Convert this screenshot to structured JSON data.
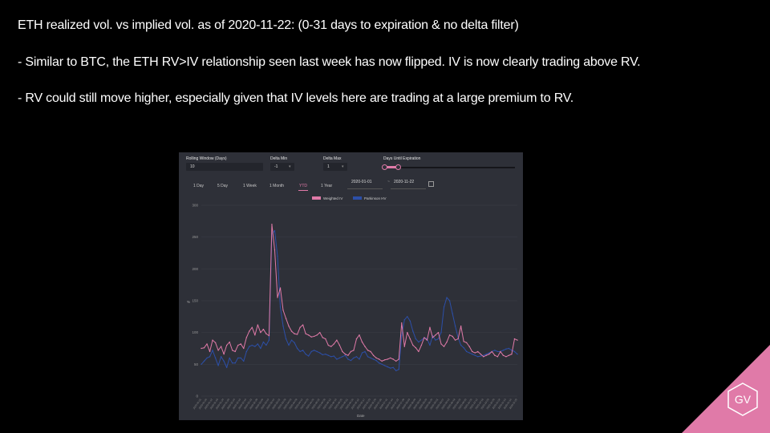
{
  "slide": {
    "line1": "ETH realized vol. vs implied vol. as of 2020-11-22: (0-31 days to expiration & no delta filter)",
    "line2": "- Similar to BTC, the ETH RV>IV relationship seen last week has now flipped.  IV is now clearly trading above RV.",
    "line3": "- RV could still move higher, especially given that IV levels here are trading at a large premium to RV."
  },
  "controls": {
    "rolling_window_label": "Rolling Window (Days)",
    "rolling_window_value": "10",
    "delta_min_label": "Delta Min",
    "delta_min_value": "-1",
    "delta_max_label": "Delta Max",
    "delta_max_value": "1",
    "days_label": "Days Until Expiration"
  },
  "ranges": {
    "d1": "1 Day",
    "d5": "5 Day",
    "w1": "1 Week",
    "m1": "1 Month",
    "ytd": "YTD",
    "y1": "1 Year",
    "active": "YTD"
  },
  "dates": {
    "start": "2020-01-01",
    "sep": "~",
    "end": "2020-11-22"
  },
  "legend": {
    "series1": "Weighted IV",
    "series2": "Parkinson HV"
  },
  "colors": {
    "pink": "#e07aa8",
    "blue": "#2c4fa8",
    "accent_triangle": "#e07aa8"
  },
  "logo": "GV",
  "chart_data": {
    "type": "line",
    "ylim": [
      0,
      300
    ],
    "y_ticks": [
      0,
      50,
      100,
      150,
      200,
      250,
      300
    ],
    "ylabel": "%",
    "xlabel": "Date",
    "x_start": "2020-01-01",
    "x_end": "2020-11-22",
    "series": [
      {
        "name": "Weighted IV",
        "color": "#e07aa8",
        "values": [
          75,
          76,
          82,
          70,
          88,
          84,
          72,
          78,
          66,
          80,
          85,
          72,
          70,
          80,
          82,
          75,
          92,
          102,
          108,
          96,
          112,
          100,
          105,
          98,
          95,
          270,
          230,
          155,
          170,
          135,
          122,
          110,
          102,
          98,
          97,
          108,
          112,
          98,
          96,
          93,
          94,
          96,
          100,
          92,
          90,
          80,
          78,
          82,
          88,
          80,
          70,
          66,
          64,
          70,
          72,
          90,
          96,
          85,
          78,
          72,
          70,
          64,
          60,
          58,
          55,
          57,
          58,
          60,
          58,
          55,
          58,
          115,
          78,
          100,
          90,
          80,
          76,
          70,
          80,
          92,
          88,
          108,
          92,
          96,
          100,
          82,
          78,
          85,
          96,
          94,
          88,
          90,
          110,
          86,
          84,
          78,
          70,
          68,
          70,
          66,
          62,
          64,
          66,
          70,
          64,
          62,
          70,
          64,
          62,
          64,
          66,
          90,
          88
        ]
      },
      {
        "name": "Parkinson HV",
        "color": "#2c4fa8",
        "values": [
          50,
          55,
          60,
          62,
          72,
          60,
          48,
          62,
          55,
          45,
          60,
          52,
          52,
          60,
          60,
          55,
          70,
          78,
          80,
          78,
          82,
          75,
          85,
          80,
          88,
          255,
          260,
          220,
          140,
          110,
          90,
          80,
          88,
          84,
          75,
          70,
          72,
          66,
          63,
          70,
          72,
          70,
          68,
          65,
          66,
          64,
          62,
          63,
          58,
          60,
          62,
          64,
          58,
          56,
          60,
          62,
          58,
          68,
          70,
          62,
          60,
          58,
          56,
          52,
          50,
          48,
          46,
          44,
          45,
          40,
          42,
          95,
          120,
          125,
          118,
          102,
          90,
          85,
          88,
          92,
          90,
          80,
          95,
          88,
          90,
          100,
          140,
          155,
          150,
          130,
          110,
          92,
          80,
          76,
          70,
          68,
          66,
          64,
          62,
          63,
          64,
          66,
          68,
          70,
          72,
          70,
          70,
          72,
          74,
          75,
          72,
          70,
          66
        ]
      }
    ]
  }
}
